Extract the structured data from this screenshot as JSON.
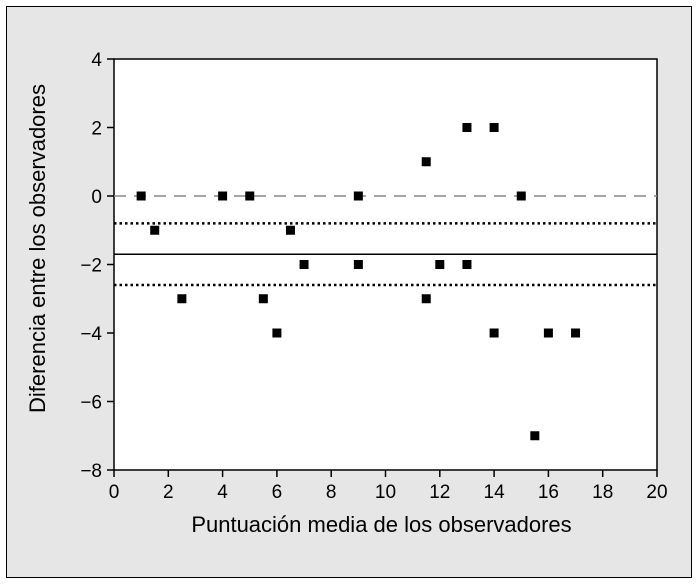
{
  "chart_data": {
    "type": "scatter",
    "title": "",
    "xlabel": "Puntuación media de los observadores",
    "ylabel": "Diferencia entre los observadores",
    "xlim": [
      0,
      20
    ],
    "ylim": [
      -8,
      4
    ],
    "xticks": [
      0,
      2,
      4,
      6,
      8,
      10,
      12,
      14,
      16,
      18,
      20
    ],
    "yticks": [
      -8,
      -6,
      -4,
      -2,
      0,
      2,
      4
    ],
    "xtick_labels": [
      "0",
      "2",
      "4",
      "6",
      "8",
      "10",
      "12",
      "14",
      "16",
      "18",
      "20"
    ],
    "ytick_labels": [
      "−8",
      "−6",
      "−4",
      "−2",
      "0",
      "2",
      "4"
    ],
    "grid": false,
    "legend": "none",
    "points": [
      {
        "x": 1.0,
        "y": 0
      },
      {
        "x": 1.5,
        "y": -1
      },
      {
        "x": 2.5,
        "y": -3
      },
      {
        "x": 4.0,
        "y": 0
      },
      {
        "x": 5.0,
        "y": 0
      },
      {
        "x": 5.5,
        "y": -3
      },
      {
        "x": 6.0,
        "y": -4
      },
      {
        "x": 6.5,
        "y": -1
      },
      {
        "x": 7.0,
        "y": -2
      },
      {
        "x": 9.0,
        "y": 0
      },
      {
        "x": 9.0,
        "y": -2
      },
      {
        "x": 11.5,
        "y": 1
      },
      {
        "x": 11.5,
        "y": -3
      },
      {
        "x": 12.0,
        "y": -2
      },
      {
        "x": 13.0,
        "y": 2
      },
      {
        "x": 13.0,
        "y": -2
      },
      {
        "x": 14.0,
        "y": 2
      },
      {
        "x": 14.0,
        "y": -4
      },
      {
        "x": 15.0,
        "y": 0
      },
      {
        "x": 15.5,
        "y": -7
      },
      {
        "x": 16.0,
        "y": -4
      },
      {
        "x": 17.0,
        "y": -4
      }
    ],
    "reference_lines": [
      {
        "y": 0,
        "style": "dashed",
        "color": "#888888"
      },
      {
        "y": -1.7,
        "style": "solid",
        "color": "#000000"
      },
      {
        "y": -0.8,
        "style": "dotted",
        "color": "#000000"
      },
      {
        "y": -2.6,
        "style": "dotted",
        "color": "#000000"
      }
    ],
    "colors": {
      "background": "#e6e6e6",
      "plot_area": "#ffffff",
      "marker": "#000000"
    }
  }
}
